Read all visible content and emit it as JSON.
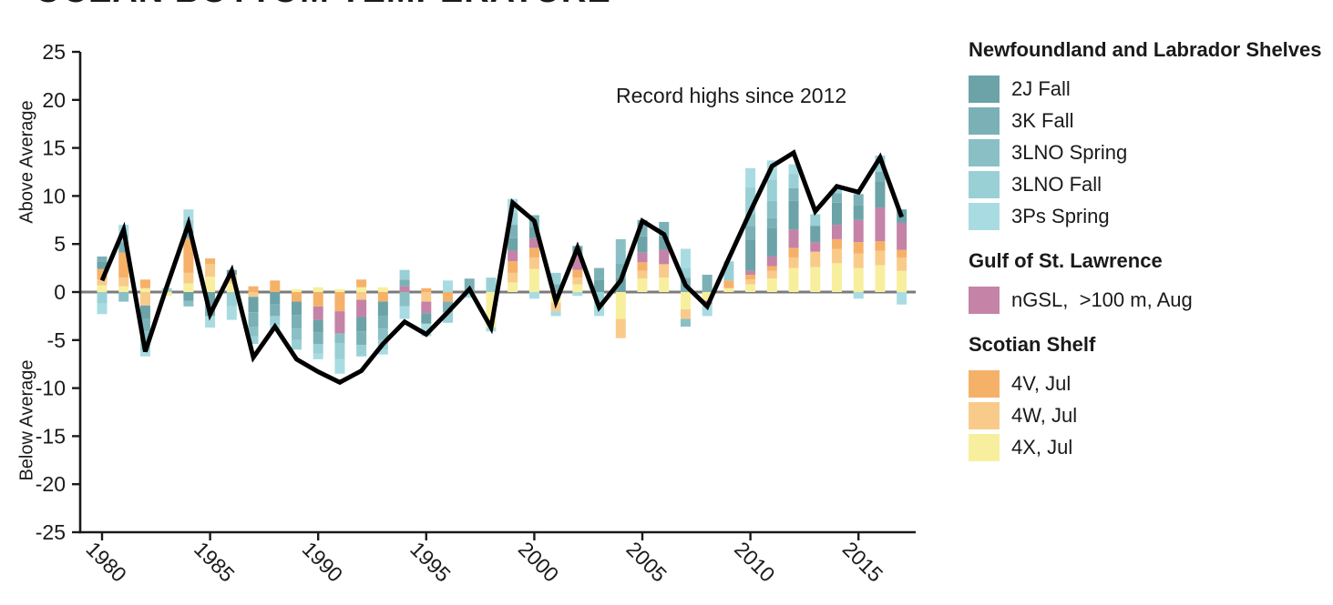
{
  "title": "OCEAN BOTTOM TEMPERATURE",
  "annotation": "Record highs since 2012",
  "y_axis": {
    "label_above": "Above Average",
    "label_below": "Below Average"
  },
  "legend": {
    "groups": [
      {
        "title": "Newfoundland and Labrador Shelves",
        "items": [
          {
            "label": "2J Fall",
            "color": "#6CA3A8"
          },
          {
            "label": "3K Fall",
            "color": "#7BB1B6"
          },
          {
            "label": "3LNO Spring",
            "color": "#8AC0C5"
          },
          {
            "label": "3LNO Fall",
            "color": "#99D0D5"
          },
          {
            "label": "3Ps Spring",
            "color": "#A9DCE2"
          }
        ]
      },
      {
        "title": "Gulf of St. Lawrence",
        "items": [
          {
            "label": "nGSL,  >100 m, Aug",
            "color": "#C583A8"
          }
        ]
      },
      {
        "title": "Scotian Shelf",
        "items": [
          {
            "label": "4V, Jul",
            "color": "#F6B169"
          },
          {
            "label": "4W, Jul",
            "color": "#F9CB8B"
          },
          {
            "label": "4X, Jul",
            "color": "#F8EF9E"
          }
        ]
      }
    ]
  },
  "chart_data": {
    "type": "bar",
    "subtype": "stacked-bars-with-composite-line",
    "x": [
      1980,
      1981,
      1982,
      1983,
      1984,
      1985,
      1986,
      1987,
      1988,
      1989,
      1990,
      1991,
      1992,
      1993,
      1994,
      1995,
      1996,
      1997,
      1998,
      1999,
      2000,
      2001,
      2002,
      2003,
      2004,
      2005,
      2006,
      2007,
      2008,
      2009,
      2010,
      2011,
      2012,
      2013,
      2014,
      2015,
      2016,
      2017
    ],
    "xticks": [
      1980,
      1985,
      1990,
      1995,
      2000,
      2005,
      2010,
      2015
    ],
    "yticks": [
      25,
      20,
      15,
      10,
      5,
      0,
      -5,
      -10,
      -15,
      -20,
      -25
    ],
    "ylim": [
      -25,
      25
    ],
    "grid": false,
    "legend_position": "right",
    "zero_line_color": "#7b7b7b",
    "axis_color": "#1a1a1a",
    "stack_order_from_zero": [
      "4X, Jul",
      "4W, Jul",
      "4V, Jul",
      "nGSL,  >100 m, Aug",
      "2J Fall",
      "3K Fall",
      "3LNO Spring",
      "3LNO Fall",
      "3Ps Spring"
    ],
    "series": [
      {
        "name": "2J Fall",
        "color": "#6CA3A8",
        "values": [
          0.8,
          0,
          -1.4,
          0,
          -0.9,
          -1.4,
          0.5,
          -1.6,
          -1.3,
          -1.4,
          -1.3,
          0,
          -1.5,
          -1.5,
          0,
          -1.1,
          0,
          0,
          0,
          1.3,
          1.2,
          0,
          0.6,
          1.3,
          1.5,
          1.7,
          1.4,
          0,
          0,
          0,
          3.2,
          3.0,
          3.0,
          1.7,
          2.3,
          1.5,
          2.7,
          1.4
        ]
      },
      {
        "name": "3K Fall",
        "color": "#7BB1B6",
        "values": [
          0.5,
          1.1,
          -1.3,
          0,
          0.9,
          -1.1,
          0,
          -1.5,
          -1.2,
          -1.4,
          -1.2,
          0,
          -1.4,
          -1.3,
          0.7,
          0,
          -1.1,
          1.4,
          0,
          1.4,
          1.2,
          0.8,
          0,
          1.2,
          1.5,
          1.7,
          1.5,
          1.5,
          1.8,
          0,
          1.5,
          1.0,
          1.3,
          0,
          1.0,
          1.2,
          1.0,
          0
        ]
      },
      {
        "name": "3LNO Spring",
        "color": "#8AC0C5",
        "values": [
          0,
          -1.0,
          -1.1,
          0,
          -0.6,
          0,
          0,
          -1.0,
          0,
          -1.2,
          0,
          -1.0,
          0,
          -1.2,
          -1.5,
          0,
          0,
          0,
          0,
          0,
          0,
          0,
          0,
          0,
          2.5,
          0,
          0,
          -0.8,
          0,
          0,
          1.2,
          1.8,
          0,
          0,
          0,
          0,
          0,
          0
        ]
      },
      {
        "name": "3LNO Fall",
        "color": "#99D0D5",
        "values": [
          -1.2,
          0.8,
          -0.9,
          0.4,
          1.0,
          0,
          -1.5,
          -0.8,
          -0.9,
          -1.0,
          -1.0,
          -1.7,
          -1.2,
          -1.0,
          1.0,
          0,
          -1.1,
          0,
          1.5,
          1.3,
          0,
          1.2,
          0,
          -1.2,
          0,
          0,
          0,
          1.0,
          0,
          2.0,
          2.8,
          2.2,
          1.5,
          1.2,
          0.5,
          0,
          1.7,
          0
        ]
      },
      {
        "name": "3Ps Spring",
        "color": "#A9DCE2",
        "values": [
          -1.1,
          1.0,
          -0.6,
          0,
          1.1,
          -1.2,
          -1.4,
          0,
          -0.6,
          0,
          -0.6,
          -1.5,
          0,
          -0.5,
          -1.3,
          -1.3,
          1.2,
          -0.6,
          -0.4,
          1.4,
          -0.7,
          -0.5,
          -0.4,
          -1.3,
          0,
          0,
          0,
          2.0,
          -1.2,
          0,
          2.0,
          2.0,
          1.0,
          0,
          0,
          -0.7,
          0,
          -1.3
        ]
      },
      {
        "name": "nGSL,  >100 m, Aug",
        "color": "#C583A8",
        "values": [
          0,
          0,
          0,
          0,
          0,
          0,
          0,
          0,
          0,
          0,
          -1.4,
          -2.3,
          -1.8,
          0,
          0.6,
          -1.2,
          0,
          0,
          0,
          1.1,
          1.0,
          0,
          1.9,
          0,
          0,
          1.0,
          1.5,
          0,
          -0.4,
          0,
          0.4,
          1.0,
          1.9,
          1.0,
          1.5,
          2.3,
          3.5,
          2.8
        ]
      },
      {
        "name": "4V, Jul",
        "color": "#F6B169",
        "values": [
          1.1,
          2.6,
          0.9,
          0,
          3.6,
          0.6,
          0,
          0.6,
          1.2,
          -1.0,
          -1.5,
          -2.0,
          0.8,
          -1.0,
          0,
          0.4,
          -1.0,
          0,
          0,
          1.2,
          1.0,
          0,
          0.8,
          0,
          0,
          0.9,
          0,
          0,
          0,
          0.8,
          0.5,
          0.5,
          1.0,
          0,
          1.0,
          1.2,
          1.0,
          0.8
        ]
      },
      {
        "name": "4W, Jul",
        "color": "#F9CB8B",
        "values": [
          0.6,
          0.9,
          -1.4,
          0,
          1.1,
          1.3,
          0.9,
          -0.5,
          0,
          0,
          0,
          0,
          -0.8,
          0,
          0,
          -1.0,
          0,
          0,
          0,
          1.0,
          1.2,
          -0.9,
          0.7,
          0,
          -2.0,
          0.8,
          1.4,
          -1.0,
          0,
          0,
          0.5,
          0.8,
          1.1,
          1.6,
          1.5,
          1.5,
          1.5,
          1.4
        ]
      },
      {
        "name": "4X, Jul",
        "color": "#F8EF9E",
        "values": [
          0.7,
          0.6,
          0.4,
          -0.4,
          0.9,
          1.6,
          0.9,
          0,
          0,
          0.3,
          0.5,
          0.3,
          0.5,
          0.5,
          0,
          0,
          0,
          0,
          -3.7,
          1.0,
          2.4,
          -1.1,
          0.8,
          0,
          -2.8,
          1.4,
          1.5,
          -1.8,
          -0.9,
          0.4,
          0.8,
          1.4,
          2.5,
          2.6,
          3.0,
          2.5,
          2.8,
          2.2
        ]
      }
    ],
    "line": {
      "name": "composite-anomaly-line",
      "color": "#000000",
      "values": [
        1.2,
        6.5,
        -6.2,
        0.6,
        7.1,
        -2.3,
        2.2,
        -6.8,
        -3.6,
        -7.0,
        -8.3,
        -9.4,
        -8.2,
        -5.4,
        -3.1,
        -4.4,
        -2.1,
        0.3,
        -3.7,
        9.3,
        7.4,
        -1.0,
        4.6,
        -1.6,
        1.2,
        7.4,
        6.0,
        0.7,
        -1.5,
        3.5,
        8.4,
        13.1,
        14.5,
        8.4,
        11.0,
        10.4,
        14.0,
        7.8
      ]
    }
  }
}
